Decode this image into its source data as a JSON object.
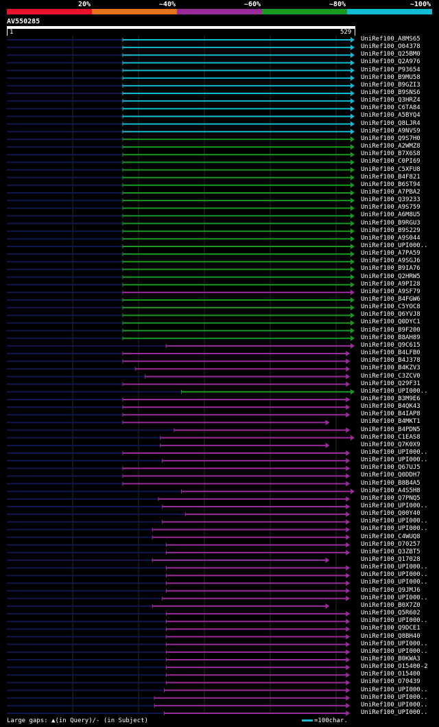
{
  "legend": [
    {
      "label": "20%",
      "color": "#e8132b"
    },
    {
      "label": "~40%",
      "color": "#e8721b"
    },
    {
      "label": "~60%",
      "color": "#9b2a9c"
    },
    {
      "label": "~80%",
      "color": "#179a1f"
    },
    {
      "label": "~100%",
      "color": "#11bcd3"
    }
  ],
  "query": {
    "id": "AV550285",
    "start": "1",
    "end": "529",
    "length": 529
  },
  "colors": {
    "cyan": "#11bcd3",
    "green": "#179a1f",
    "purple": "#9b2a9c",
    "navy": "#10174f",
    "gap": "#ffff99"
  },
  "hits": [
    {
      "name": "UniRef100_A8MS65",
      "color": "cyan",
      "start": 177,
      "end": 529
    },
    {
      "name": "UniRef100_O04378",
      "color": "cyan",
      "start": 177,
      "end": 529
    },
    {
      "name": "UniRef100_Q25BM0",
      "color": "cyan",
      "start": 177,
      "end": 529
    },
    {
      "name": "UniRef100_Q2A976",
      "color": "cyan",
      "start": 177,
      "end": 529
    },
    {
      "name": "UniRef100_P93654",
      "color": "cyan",
      "start": 177,
      "end": 529
    },
    {
      "name": "UniRef100_B9MU58",
      "color": "cyan",
      "start": 177,
      "end": 529
    },
    {
      "name": "UniRef100_B9GZI3",
      "color": "cyan",
      "start": 177,
      "end": 529
    },
    {
      "name": "UniRef100_B9SNS6",
      "color": "cyan",
      "start": 177,
      "end": 529
    },
    {
      "name": "UniRef100_Q3HRZ4",
      "color": "cyan",
      "start": 177,
      "end": 529
    },
    {
      "name": "UniRef100_C6TA84",
      "color": "cyan",
      "start": 177,
      "end": 529
    },
    {
      "name": "UniRef100_A5BYQ4",
      "color": "cyan",
      "start": 177,
      "end": 529
    },
    {
      "name": "UniRef100_Q8LJR4",
      "color": "cyan",
      "start": 177,
      "end": 529
    },
    {
      "name": "UniRef100_A9NVS9",
      "color": "cyan",
      "start": 177,
      "end": 529
    },
    {
      "name": "UniRef100_Q9S7H0",
      "color": "green",
      "start": 177,
      "end": 529
    },
    {
      "name": "UniRef100_A2WMZ8",
      "color": "green",
      "start": 177,
      "end": 529
    },
    {
      "name": "UniRef100_B7X6S8",
      "color": "green",
      "start": 177,
      "end": 529
    },
    {
      "name": "UniRef100_C0PI69",
      "color": "green",
      "start": 177,
      "end": 529
    },
    {
      "name": "UniRef100_C5XFU8",
      "color": "green",
      "start": 177,
      "end": 529
    },
    {
      "name": "UniRef100_B4F821",
      "color": "green",
      "start": 177,
      "end": 529
    },
    {
      "name": "UniRef100_B6ST94",
      "color": "green",
      "start": 177,
      "end": 529
    },
    {
      "name": "UniRef100_A7PBA2",
      "color": "green",
      "start": 177,
      "end": 529
    },
    {
      "name": "UniRef100_Q39233",
      "color": "green",
      "start": 177,
      "end": 529
    },
    {
      "name": "UniRef100_A9S759",
      "color": "green",
      "start": 177,
      "end": 529
    },
    {
      "name": "UniRef100_A6M8U5",
      "color": "green",
      "start": 177,
      "end": 529
    },
    {
      "name": "UniRef100_B9RGU3",
      "color": "green",
      "start": 177,
      "end": 529
    },
    {
      "name": "UniRef100_B9S229",
      "color": "green",
      "start": 177,
      "end": 529
    },
    {
      "name": "UniRef100_A9S044",
      "color": "green",
      "start": 177,
      "end": 529
    },
    {
      "name": "UniRef100_UPI000..",
      "color": "green",
      "start": 177,
      "end": 529
    },
    {
      "name": "UniRef100_A7PA59",
      "color": "green",
      "start": 177,
      "end": 529
    },
    {
      "name": "UniRef100_A9SGJ6",
      "color": "green",
      "start": 177,
      "end": 529
    },
    {
      "name": "UniRef100_B9IA76",
      "color": "green",
      "start": 177,
      "end": 529
    },
    {
      "name": "UniRef100_Q2HRW5",
      "color": "green",
      "start": 177,
      "end": 529
    },
    {
      "name": "UniRef100_A9PI28",
      "color": "green",
      "start": 177,
      "end": 529
    },
    {
      "name": "UniRef100_A9SF79",
      "color": "purple",
      "start": 177,
      "end": 529
    },
    {
      "name": "UniRef100_B4FGW6",
      "color": "green",
      "start": 177,
      "end": 529
    },
    {
      "name": "UniRef100_C5YOC8",
      "color": "green",
      "start": 177,
      "end": 529
    },
    {
      "name": "UniRef100_Q6YVJ8",
      "color": "green",
      "start": 177,
      "end": 529
    },
    {
      "name": "UniRef100_Q0DYC1",
      "color": "green",
      "start": 177,
      "end": 529
    },
    {
      "name": "UniRef100_B9F200",
      "color": "green",
      "start": 177,
      "end": 529
    },
    {
      "name": "UniRef100_B8AH89",
      "color": "green",
      "start": 177,
      "end": 529
    },
    {
      "name": "UniRef100_Q9C615",
      "color": "purple",
      "start": 243,
      "end": 529
    },
    {
      "name": "UniRef100_B4LFB0",
      "color": "purple",
      "start": 177,
      "end": 522
    },
    {
      "name": "UniRef100_B4J378",
      "color": "purple",
      "start": 177,
      "end": 522
    },
    {
      "name": "UniRef100_B4KZV3",
      "color": "purple",
      "start": 196,
      "end": 522
    },
    {
      "name": "UniRef100_C3ZCV0",
      "color": "purple",
      "start": 211,
      "end": 522
    },
    {
      "name": "UniRef100_Q29F31",
      "color": "purple",
      "start": 177,
      "end": 522
    },
    {
      "name": "UniRef100_UPI000..",
      "color": "green",
      "start": 266,
      "end": 529
    },
    {
      "name": "UniRef100_B3M9E6",
      "color": "purple",
      "start": 177,
      "end": 522
    },
    {
      "name": "UniRef100_B4QK43",
      "color": "purple",
      "start": 177,
      "end": 522
    },
    {
      "name": "UniRef100_B4IAP8",
      "color": "purple",
      "start": 177,
      "end": 522
    },
    {
      "name": "UniRef100_B4MKT1",
      "color": "purple",
      "start": 177,
      "end": 491
    },
    {
      "name": "UniRef100_B4PDN5",
      "color": "purple",
      "start": 255,
      "end": 522
    },
    {
      "name": "UniRef100_C1EAS8",
      "color": "purple",
      "start": 234,
      "end": 529
    },
    {
      "name": "UniRef100_Q7K0X9",
      "color": "purple",
      "start": 234,
      "end": 491
    },
    {
      "name": "UniRef100_UPI000..",
      "color": "purple",
      "start": 177,
      "end": 522
    },
    {
      "name": "UniRef100_UPI000..",
      "color": "purple",
      "start": 237,
      "end": 522
    },
    {
      "name": "UniRef100_Q67UJ5",
      "color": "purple",
      "start": 177,
      "end": 522
    },
    {
      "name": "UniRef100_Q0DDH7",
      "color": "purple",
      "start": 177,
      "end": 522
    },
    {
      "name": "UniRef100_B8B4A5",
      "color": "purple",
      "start": 177,
      "end": 522
    },
    {
      "name": "UniRef100_A4S5H8",
      "color": "purple",
      "start": 266,
      "end": 529
    },
    {
      "name": "UniRef100_Q7PNQ5",
      "color": "purple",
      "start": 231,
      "end": 522
    },
    {
      "name": "UniRef100_UPI000..",
      "color": "purple",
      "start": 237,
      "end": 522
    },
    {
      "name": "UniRef100_Q00Y40",
      "color": "purple",
      "start": 272,
      "end": 522
    },
    {
      "name": "UniRef100_UPI000..",
      "color": "purple",
      "start": 237,
      "end": 522
    },
    {
      "name": "UniRef100_UPI000..",
      "color": "purple",
      "start": 222,
      "end": 522
    },
    {
      "name": "UniRef100_C4WUQ8",
      "color": "purple",
      "start": 222,
      "end": 522
    },
    {
      "name": "UniRef100_O70257",
      "color": "purple",
      "start": 243,
      "end": 522
    },
    {
      "name": "UniRef100_Q3ZBT5",
      "color": "purple",
      "start": 243,
      "end": 522
    },
    {
      "name": "UniRef100_Q17028",
      "color": "purple",
      "start": 222,
      "end": 491
    },
    {
      "name": "UniRef100_UPI000..",
      "color": "purple",
      "start": 243,
      "end": 522
    },
    {
      "name": "UniRef100_UPI000..",
      "color": "purple",
      "start": 243,
      "end": 522
    },
    {
      "name": "UniRef100_UPI000..",
      "color": "purple",
      "start": 243,
      "end": 522
    },
    {
      "name": "UniRef100_Q9JMJ6",
      "color": "purple",
      "start": 243,
      "end": 522
    },
    {
      "name": "UniRef100_UPI000..",
      "color": "purple",
      "start": 237,
      "end": 522
    },
    {
      "name": "UniRef100_B0X7Z0",
      "color": "purple",
      "start": 222,
      "end": 491
    },
    {
      "name": "UniRef100_Q5R602",
      "color": "purple",
      "start": 243,
      "end": 522
    },
    {
      "name": "UniRef100_UPI000..",
      "color": "purple",
      "start": 243,
      "end": 522
    },
    {
      "name": "UniRef100_Q9DCE1",
      "color": "purple",
      "start": 243,
      "end": 522
    },
    {
      "name": "UniRef100_Q8BH40",
      "color": "purple",
      "start": 243,
      "end": 522
    },
    {
      "name": "UniRef100_UPI000..",
      "color": "purple",
      "start": 243,
      "end": 522
    },
    {
      "name": "UniRef100_UPI000..",
      "color": "purple",
      "start": 243,
      "end": 522
    },
    {
      "name": "UniRef100_B0KWA3",
      "color": "purple",
      "start": 243,
      "end": 522
    },
    {
      "name": "UniRef100_O15400-2",
      "color": "purple",
      "start": 243,
      "end": 522
    },
    {
      "name": "UniRef100_O15400",
      "color": "purple",
      "start": 243,
      "end": 522
    },
    {
      "name": "UniRef100_O70439",
      "color": "purple",
      "start": 243,
      "end": 522
    },
    {
      "name": "UniRef100_UPI000..",
      "color": "purple",
      "start": 240,
      "end": 522
    },
    {
      "name": "UniRef100_UPI000..",
      "color": "purple",
      "start": 225,
      "end": 522
    },
    {
      "name": "UniRef100_UPI000..",
      "color": "purple",
      "start": 225,
      "end": 522
    },
    {
      "name": "UniRef100_UPI000..",
      "color": "purple",
      "start": 240,
      "end": 522
    }
  ],
  "footer": {
    "gaps_text": "Large gaps: ▲(in Query)/- (in Subject)",
    "scale_text": "=100char."
  }
}
